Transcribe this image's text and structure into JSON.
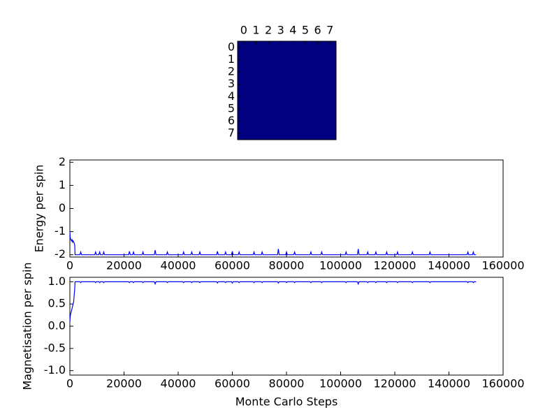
{
  "chart_data": [
    {
      "type": "heatmap",
      "color": "#000080",
      "xticks": [
        0,
        1,
        2,
        3,
        4,
        5,
        6,
        7
      ],
      "yticks": [
        0,
        1,
        2,
        3,
        4,
        5,
        6,
        7
      ],
      "xlim": [
        -0.5,
        7.5
      ],
      "ylim": [
        7.5,
        -0.5
      ],
      "values": [
        [
          1,
          1,
          1,
          1,
          1,
          1,
          1,
          1
        ],
        [
          1,
          1,
          1,
          1,
          1,
          1,
          1,
          1
        ],
        [
          1,
          1,
          1,
          1,
          1,
          1,
          1,
          1
        ],
        [
          1,
          1,
          1,
          1,
          1,
          1,
          1,
          1
        ],
        [
          1,
          1,
          1,
          1,
          1,
          1,
          1,
          1
        ],
        [
          1,
          1,
          1,
          1,
          1,
          1,
          1,
          1
        ],
        [
          1,
          1,
          1,
          1,
          1,
          1,
          1,
          1
        ],
        [
          1,
          1,
          1,
          1,
          1,
          1,
          1,
          1
        ]
      ]
    },
    {
      "type": "line",
      "ylabel": "Energy per spin",
      "color": "#0000ff",
      "xlim": [
        0,
        160000
      ],
      "xticks": [
        0,
        20000,
        40000,
        60000,
        80000,
        100000,
        120000,
        140000,
        160000
      ],
      "ylim": [
        -2.1,
        2.1
      ],
      "yticks": [
        -2,
        -1,
        0,
        1,
        2
      ],
      "x": [
        0,
        100,
        200,
        400,
        600,
        800,
        1000,
        1200,
        1400,
        1600,
        1800,
        1900,
        3700,
        4000,
        4300,
        9200,
        9500,
        9800,
        10700,
        11000,
        11300,
        12200,
        12500,
        12800,
        21700,
        22000,
        22300,
        23200,
        23500,
        23800,
        26700,
        27000,
        27300,
        31200,
        31500,
        31800,
        35700,
        36000,
        36300,
        41700,
        42000,
        42300,
        44700,
        45000,
        45300,
        47700,
        48000,
        48300,
        54200,
        54500,
        54800,
        57200,
        57500,
        57800,
        59700,
        60000,
        60300,
        62200,
        62500,
        62800,
        67700,
        68000,
        68300,
        70700,
        71000,
        71300,
        76700,
        77000,
        77300,
        79700,
        80000,
        80300,
        82700,
        83000,
        83300,
        88700,
        89000,
        89300,
        92700,
        93000,
        93300,
        101700,
        102000,
        102300,
        106200,
        106500,
        106800,
        109700,
        110000,
        110300,
        112700,
        113000,
        113300,
        116700,
        117000,
        117300,
        120700,
        121000,
        121300,
        126200,
        126500,
        126800,
        132700,
        133000,
        133300,
        146700,
        147000,
        147300,
        148700,
        149000,
        149300,
        150000
      ],
      "values": [
        -1.0,
        -1.2,
        -1.3,
        -1.35,
        -1.4,
        -1.35,
        -1.45,
        -1.4,
        -1.45,
        -1.5,
        -1.6,
        -2,
        -2,
        -1.88,
        -2,
        -2,
        -1.88,
        -2,
        -2,
        -1.88,
        -2,
        -2,
        -1.88,
        -2,
        -2,
        -1.85,
        -2,
        -2,
        -1.88,
        -2,
        -2,
        -1.88,
        -2,
        -2,
        -1.8,
        -2,
        -2,
        -1.88,
        -2,
        -2,
        -1.88,
        -2,
        -2,
        -1.88,
        -2,
        -2,
        -1.88,
        -2,
        -2,
        -1.85,
        -2,
        -2,
        -1.88,
        -2,
        -2,
        -1.85,
        -2,
        -2,
        -1.88,
        -2,
        -2,
        -1.88,
        -2,
        -2,
        -1.88,
        -2,
        -2,
        -1.75,
        -2,
        -2,
        -1.88,
        -2,
        -2,
        -1.88,
        -2,
        -2,
        -1.88,
        -2,
        -2,
        -1.88,
        -2,
        -2,
        -1.88,
        -2,
        -2,
        -1.75,
        -2,
        -2,
        -1.88,
        -2,
        -2,
        -1.88,
        -2,
        -2,
        -1.88,
        -2,
        -2,
        -1.88,
        -2,
        -2,
        -1.88,
        -2,
        -2,
        -1.88,
        -2,
        -2,
        -1.88,
        -2,
        -2,
        -1.88,
        -2,
        -2
      ]
    },
    {
      "type": "line",
      "ylabel": "Magnetisation per spin",
      "xlabel": "Monte Carlo Steps",
      "color": "#0000ff",
      "xlim": [
        0,
        160000
      ],
      "xticks": [
        0,
        20000,
        40000,
        60000,
        80000,
        100000,
        120000,
        140000,
        160000
      ],
      "ylim": [
        -1.1,
        1.1
      ],
      "yticks": [
        {
          "value": -1,
          "label": "-1.0"
        },
        -0.5,
        {
          "value": 0,
          "label": "0.0"
        },
        0.5,
        {
          "value": 1,
          "label": "1.0"
        }
      ],
      "x": [
        0,
        100,
        200,
        400,
        600,
        800,
        1000,
        1200,
        1400,
        1600,
        1800,
        1900,
        3700,
        4000,
        4300,
        9200,
        9500,
        9800,
        10700,
        11000,
        11300,
        12200,
        12500,
        12800,
        21700,
        22000,
        22300,
        23200,
        23500,
        23800,
        26700,
        27000,
        27300,
        31200,
        31500,
        31800,
        35700,
        36000,
        36300,
        41700,
        42000,
        42300,
        44700,
        45000,
        45300,
        47700,
        48000,
        48300,
        54200,
        54500,
        54800,
        57200,
        57500,
        57800,
        59700,
        60000,
        60300,
        62200,
        62500,
        62800,
        67700,
        68000,
        68300,
        70700,
        71000,
        71300,
        76700,
        77000,
        77300,
        79700,
        80000,
        80300,
        82700,
        83000,
        83300,
        88700,
        89000,
        89300,
        92700,
        93000,
        93300,
        101700,
        102000,
        102300,
        106200,
        106500,
        106800,
        109700,
        110000,
        110300,
        112700,
        113000,
        113300,
        116700,
        117000,
        117300,
        120700,
        121000,
        121300,
        126200,
        126500,
        126800,
        132700,
        133000,
        133300,
        146700,
        147000,
        147300,
        148700,
        149000,
        149300,
        150000
      ],
      "values": [
        0.1,
        0.2,
        0.25,
        0.3,
        0.35,
        0.4,
        0.45,
        0.5,
        0.55,
        0.7,
        0.85,
        1,
        1,
        0.98,
        1,
        1,
        0.98,
        1,
        1,
        0.98,
        1,
        1,
        0.98,
        1,
        1,
        0.98,
        1,
        1,
        0.98,
        1,
        1,
        0.98,
        1,
        1,
        0.95,
        1,
        1,
        0.98,
        1,
        1,
        0.98,
        1,
        1,
        0.98,
        1,
        1,
        0.98,
        1,
        1,
        0.97,
        1,
        1,
        0.98,
        1,
        1,
        0.97,
        1,
        1,
        0.98,
        1,
        1,
        0.98,
        1,
        1,
        0.98,
        1,
        1,
        0.97,
        1,
        1,
        0.98,
        1,
        1,
        0.98,
        1,
        1,
        0.98,
        1,
        1,
        0.98,
        1,
        1,
        0.98,
        1,
        1,
        0.95,
        1,
        1,
        0.98,
        1,
        1,
        0.98,
        1,
        1,
        0.98,
        1,
        1,
        0.98,
        1,
        1,
        0.98,
        1,
        1,
        0.98,
        1,
        1,
        0.98,
        1,
        1,
        0.98,
        1,
        1
      ]
    }
  ]
}
